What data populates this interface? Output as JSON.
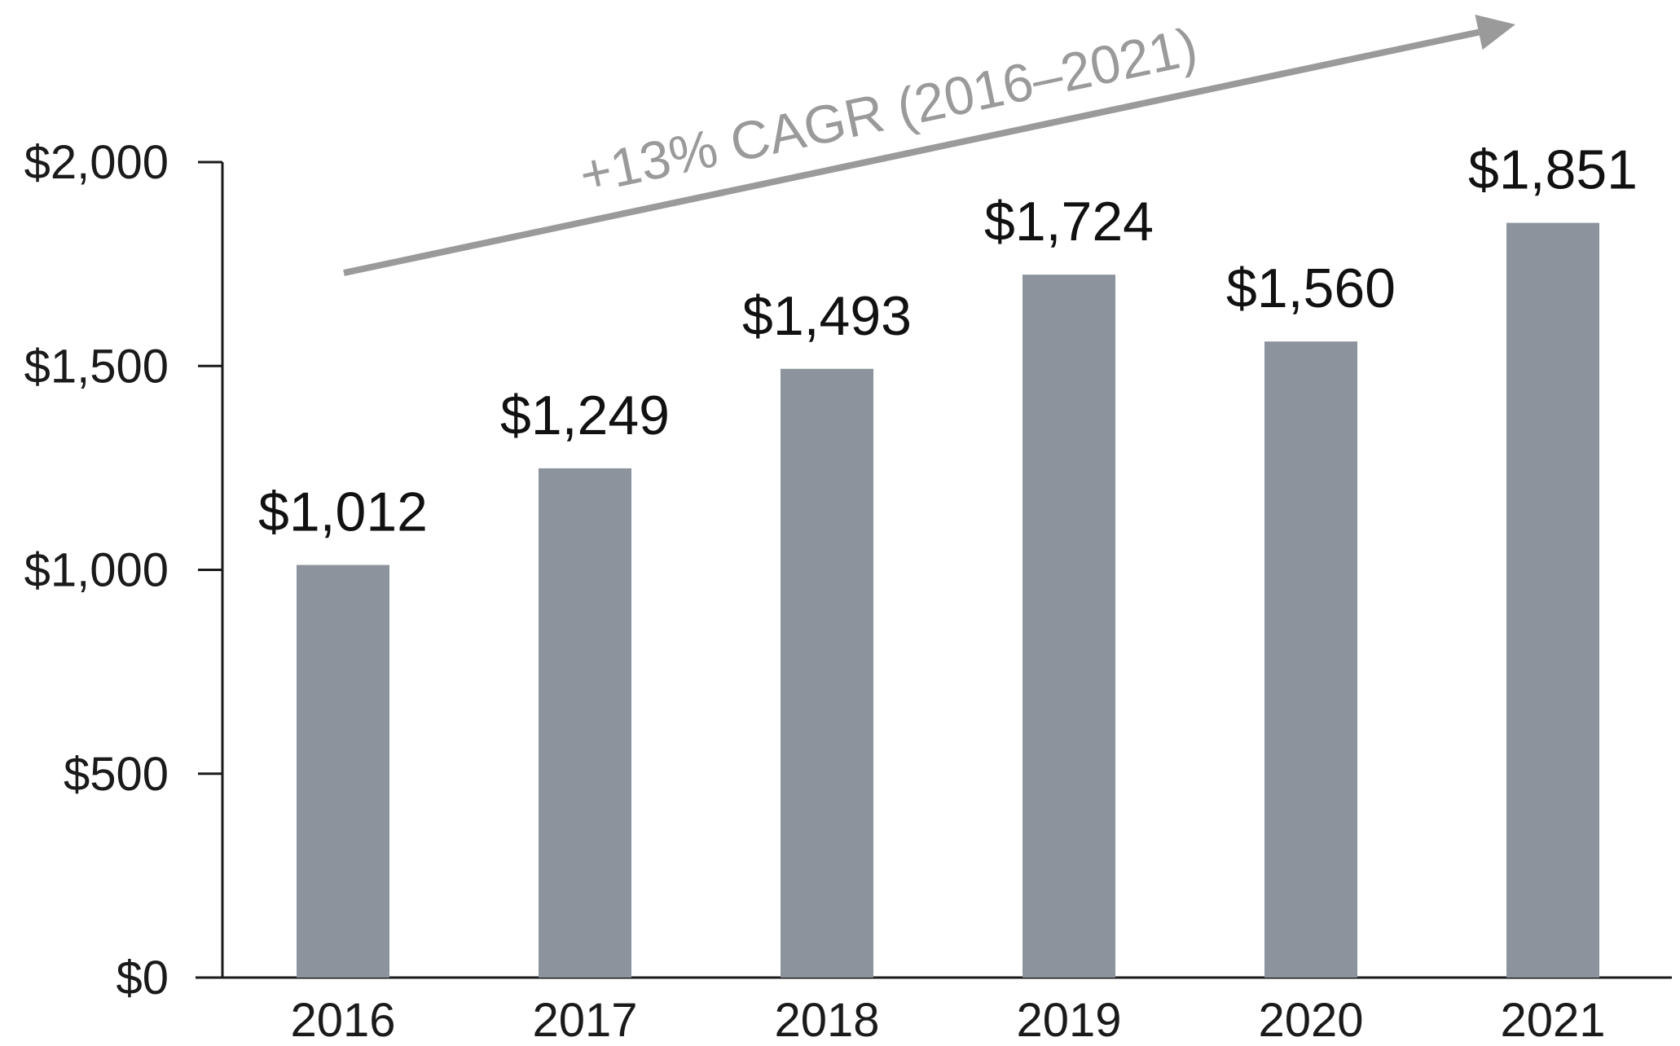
{
  "chart_data": {
    "type": "bar",
    "title": "",
    "xlabel": "",
    "ylabel": "",
    "categories": [
      "2016",
      "2017",
      "2018",
      "2019",
      "2020",
      "2021"
    ],
    "values": [
      1012,
      1249,
      1493,
      1724,
      1560,
      1851
    ],
    "data_labels": [
      "$1,012",
      "$1,249",
      "$1,493",
      "$1,724",
      "$1,560",
      "$1,851"
    ],
    "ylim": [
      0,
      2000
    ],
    "y_ticks": [
      {
        "value": 0,
        "label": "$0"
      },
      {
        "value": 500,
        "label": "$500"
      },
      {
        "value": 1000,
        "label": "$1,000"
      },
      {
        "value": 1500,
        "label": "$1,500"
      },
      {
        "value": 2000,
        "label": "$2,000"
      }
    ],
    "annotation": {
      "text": "+13% CAGR (2016–2021)",
      "from_category": "2016",
      "to_category": "2021"
    },
    "grid": false,
    "legend": "none",
    "colors": {
      "bar": "#8c939c",
      "arrow": "#9a9a9a",
      "axis": "#1a1a1a"
    }
  }
}
